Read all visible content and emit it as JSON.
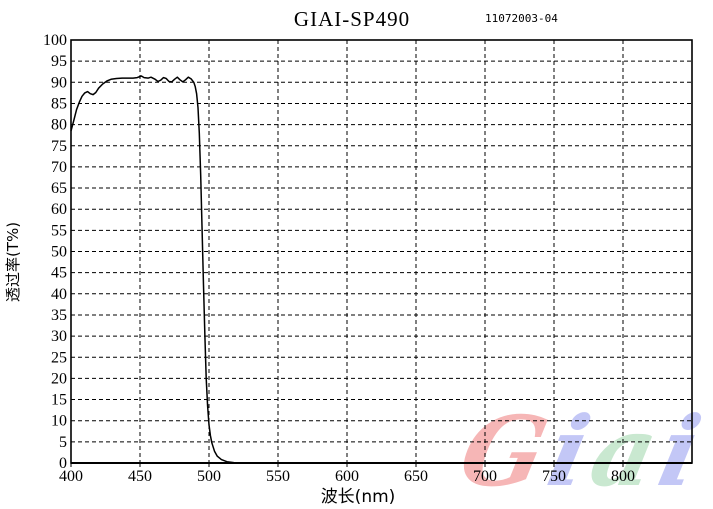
{
  "header": {
    "title": "GIAI-SP490",
    "doc_number": "11072003-04"
  },
  "axes": {
    "x_label": "波长(nm)",
    "y_label": "透过率(T%)"
  },
  "watermark": {
    "word": "Giai",
    "letters": [
      {
        "char": "G",
        "color": "#f5a9a9"
      },
      {
        "char": "i",
        "color": "#b9bdf5"
      },
      {
        "char": "a",
        "color": "#c0e4c8"
      },
      {
        "char": "i",
        "color": "#b9bdf5"
      }
    ]
  },
  "colors": {
    "curve": "#000000",
    "grid": "#000000",
    "background": "#ffffff"
  },
  "chart_data": {
    "type": "line",
    "title": "GIAI-SP490",
    "xlabel": "波长(nm)",
    "ylabel": "透过率(T%)",
    "xlim": [
      400,
      850
    ],
    "ylim": [
      0,
      100
    ],
    "x_ticks": [
      400,
      450,
      500,
      550,
      600,
      650,
      700,
      750,
      800
    ],
    "y_ticks": [
      0,
      5,
      10,
      15,
      20,
      25,
      30,
      35,
      40,
      45,
      50,
      55,
      60,
      65,
      70,
      75,
      80,
      85,
      90,
      95,
      100
    ],
    "grid": true,
    "grid_style": "dashed",
    "legend": "none",
    "series": [
      {
        "name": "transmission",
        "color": "#000000",
        "points": [
          [
            400,
            78.5
          ],
          [
            402,
            81
          ],
          [
            404,
            83.5
          ],
          [
            406,
            85.3
          ],
          [
            408,
            86.7
          ],
          [
            410,
            87.5
          ],
          [
            412,
            87.8
          ],
          [
            414,
            87.3
          ],
          [
            416,
            87.1
          ],
          [
            418,
            87.6
          ],
          [
            420,
            88.6
          ],
          [
            423,
            89.6
          ],
          [
            426,
            90.3
          ],
          [
            429,
            90.7
          ],
          [
            433,
            90.9
          ],
          [
            437,
            91.0
          ],
          [
            441,
            91.0
          ],
          [
            445,
            91.0
          ],
          [
            448,
            91.1
          ],
          [
            451,
            91.5
          ],
          [
            453,
            91.1
          ],
          [
            456,
            91.0
          ],
          [
            458,
            91.2
          ],
          [
            461,
            90.7
          ],
          [
            463,
            90.2
          ],
          [
            465,
            90.5
          ],
          [
            467,
            91.1
          ],
          [
            469,
            90.9
          ],
          [
            471,
            90.2
          ],
          [
            473,
            90.1
          ],
          [
            475,
            90.7
          ],
          [
            477,
            91.2
          ],
          [
            479,
            90.6
          ],
          [
            481,
            90.1
          ],
          [
            483,
            90.6
          ],
          [
            485,
            91.2
          ],
          [
            487,
            90.8
          ],
          [
            489,
            90.0
          ],
          [
            490,
            89.0
          ],
          [
            491,
            87.3
          ],
          [
            492,
            84.0
          ],
          [
            493,
            78.0
          ],
          [
            494,
            68.0
          ],
          [
            495,
            55.0
          ],
          [
            496,
            42.0
          ],
          [
            497,
            30.0
          ],
          [
            498,
            20.0
          ],
          [
            499,
            13.5
          ],
          [
            500,
            9.0
          ],
          [
            501,
            6.5
          ],
          [
            502,
            4.8
          ],
          [
            504,
            2.8
          ],
          [
            506,
            1.6
          ],
          [
            509,
            0.8
          ],
          [
            513,
            0.3
          ],
          [
            518,
            0.1
          ],
          [
            525,
            0
          ],
          [
            600,
            0
          ],
          [
            700,
            0
          ],
          [
            800,
            0
          ],
          [
            850,
            0
          ]
        ]
      }
    ]
  }
}
